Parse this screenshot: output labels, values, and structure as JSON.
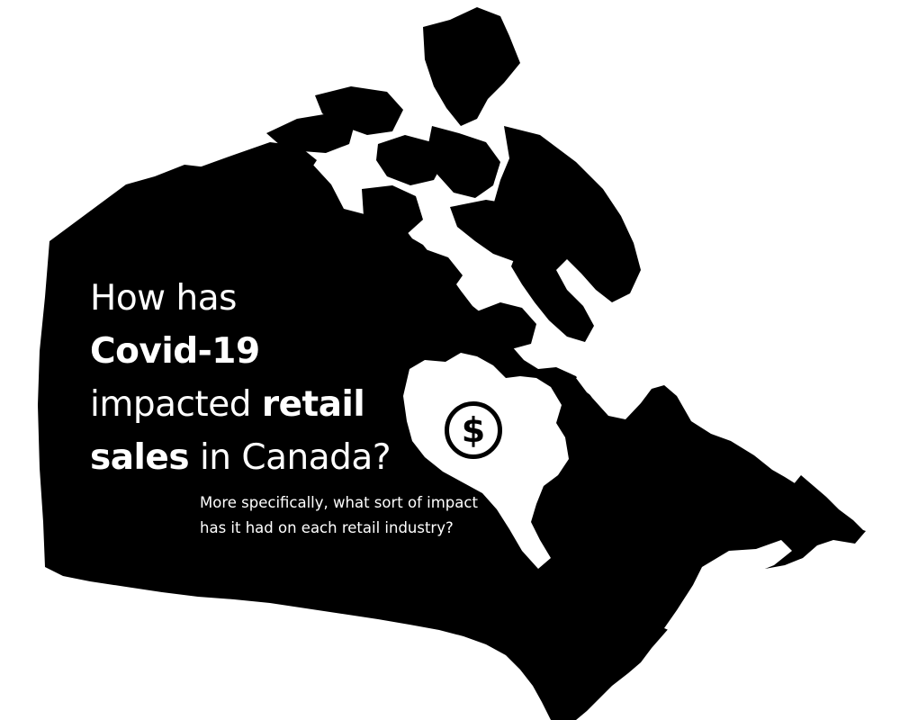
{
  "title": {
    "line1": "How has",
    "line2_bold": "Covid-19",
    "line3_regular": "impacted ",
    "line3_bold": "retail",
    "line4_bold": "sales",
    "line4_regular": " in Canada?"
  },
  "subtitle": "More specifically, what sort of impact has it had on each retail industry?",
  "badge": {
    "icon": "dollar-sign-icon",
    "glyph": "$"
  },
  "colors": {
    "map_fill": "#000000",
    "background": "#ffffff",
    "text": "#ffffff"
  }
}
